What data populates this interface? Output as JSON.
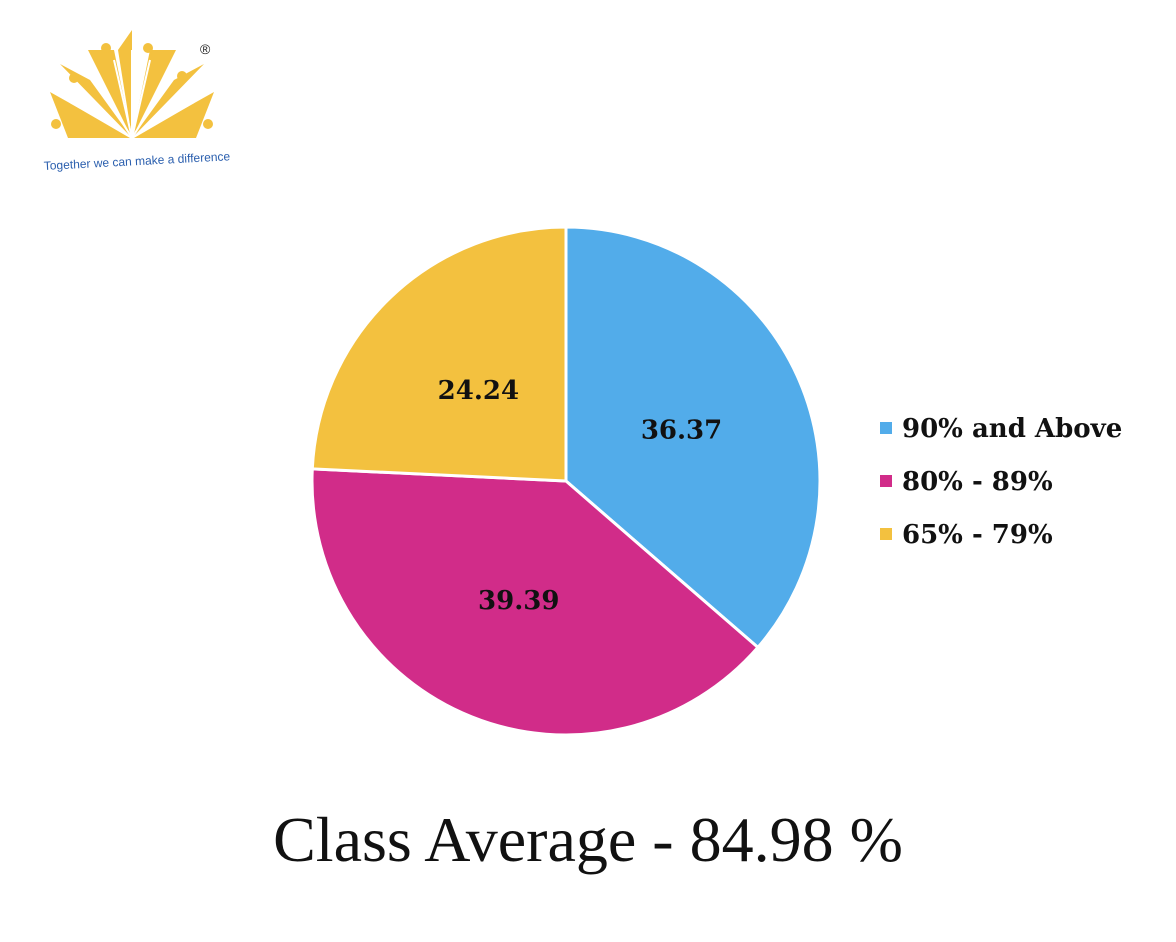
{
  "logo": {
    "tagline": "Together we can make a difference",
    "registered_mark": "®"
  },
  "chart_data": {
    "type": "pie",
    "categories": [
      "90% and Above",
      "80% - 89%",
      "65% - 79%"
    ],
    "values": [
      36.37,
      39.39,
      24.24
    ],
    "colors": [
      "#52acea",
      "#d12c89",
      "#f3c13f"
    ],
    "legend_position": "right"
  },
  "footer": {
    "title": "Class Average - 84.98 %"
  }
}
